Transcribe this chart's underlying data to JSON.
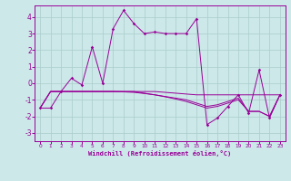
{
  "xlabel": "Windchill (Refroidissement éolien,°C)",
  "bg_color": "#cce8e8",
  "grid_color": "#aacccc",
  "line_color": "#990099",
  "xlim": [
    -0.5,
    23.5
  ],
  "ylim": [
    -3.5,
    4.7
  ],
  "yticks": [
    -3,
    -2,
    -1,
    0,
    1,
    2,
    3,
    4
  ],
  "xticks": [
    0,
    1,
    2,
    3,
    4,
    5,
    6,
    7,
    8,
    9,
    10,
    11,
    12,
    13,
    14,
    15,
    16,
    17,
    18,
    19,
    20,
    21,
    22,
    23
  ],
  "s1_x": [
    0,
    1,
    2,
    3,
    4,
    5,
    6,
    7,
    8,
    9,
    10,
    11,
    12,
    13,
    14,
    15,
    16,
    17,
    18,
    19,
    20,
    21,
    22,
    23
  ],
  "s1_y": [
    -1.5,
    -1.5,
    -0.5,
    0.3,
    -0.1,
    2.2,
    0.0,
    3.3,
    4.4,
    3.6,
    3.0,
    3.1,
    3.0,
    3.0,
    3.0,
    3.9,
    -2.5,
    -2.1,
    -1.4,
    -0.7,
    -1.8,
    0.8,
    -2.1,
    -0.7
  ],
  "s2_x": [
    0,
    1,
    2,
    3,
    4,
    5,
    6,
    7,
    8,
    9,
    10,
    11,
    12,
    13,
    14,
    15,
    16,
    17,
    18,
    19,
    20,
    21,
    22,
    23
  ],
  "s2_y": [
    -1.5,
    -0.5,
    -0.5,
    -0.5,
    -0.5,
    -0.5,
    -0.5,
    -0.5,
    -0.5,
    -0.5,
    -0.5,
    -0.5,
    -0.55,
    -0.6,
    -0.65,
    -0.7,
    -0.7,
    -0.7,
    -0.7,
    -0.7,
    -0.7,
    -0.7,
    -0.7,
    -0.7
  ],
  "s3_x": [
    0,
    1,
    2,
    3,
    4,
    5,
    6,
    7,
    8,
    9,
    10,
    11,
    12,
    13,
    14,
    15,
    16,
    17,
    18,
    19,
    20,
    21,
    22,
    23
  ],
  "s3_y": [
    -1.5,
    -0.5,
    -0.5,
    -0.5,
    -0.5,
    -0.5,
    -0.5,
    -0.5,
    -0.5,
    -0.5,
    -0.6,
    -0.7,
    -0.8,
    -0.9,
    -1.0,
    -1.2,
    -1.4,
    -1.3,
    -1.1,
    -0.9,
    -1.7,
    -1.7,
    -2.0,
    -0.7
  ],
  "s4_x": [
    0,
    1,
    2,
    3,
    4,
    5,
    6,
    7,
    8,
    9,
    10,
    11,
    12,
    13,
    14,
    15,
    16,
    17,
    18,
    19,
    20,
    21,
    22,
    23
  ],
  "s4_y": [
    -1.5,
    -0.5,
    -0.5,
    -0.5,
    -0.5,
    -0.5,
    -0.5,
    -0.5,
    -0.52,
    -0.55,
    -0.62,
    -0.7,
    -0.82,
    -0.95,
    -1.1,
    -1.3,
    -1.5,
    -1.4,
    -1.2,
    -1.0,
    -1.7,
    -1.7,
    -2.0,
    -0.7
  ]
}
